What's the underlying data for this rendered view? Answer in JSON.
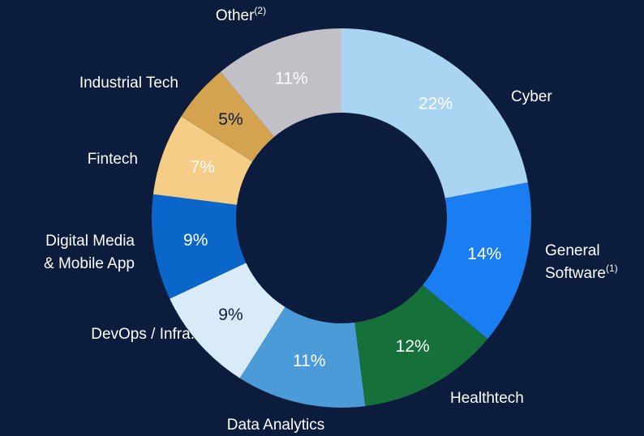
{
  "chart_data": {
    "type": "donut",
    "categories": [
      "Cyber",
      "General Software(1)",
      "Healthtech",
      "Data Analytics",
      "DevOps / Infra.",
      "Digital Media & Mobile App",
      "Fintech",
      "Industrial Tech",
      "Other(2)"
    ],
    "values": [
      22,
      14,
      12,
      11,
      9,
      9,
      7,
      5,
      11
    ],
    "value_labels": [
      "22%",
      "14%",
      "12%",
      "11%",
      "9%",
      "9%",
      "7%",
      "5%",
      "11%"
    ],
    "colors": [
      "#a9d5f3",
      "#1a7df1",
      "#16703a",
      "#4b9bd9",
      "#d9eaf8",
      "#0b66c9",
      "#f5cd86",
      "#d4a350",
      "#c1c0c7"
    ]
  }
}
